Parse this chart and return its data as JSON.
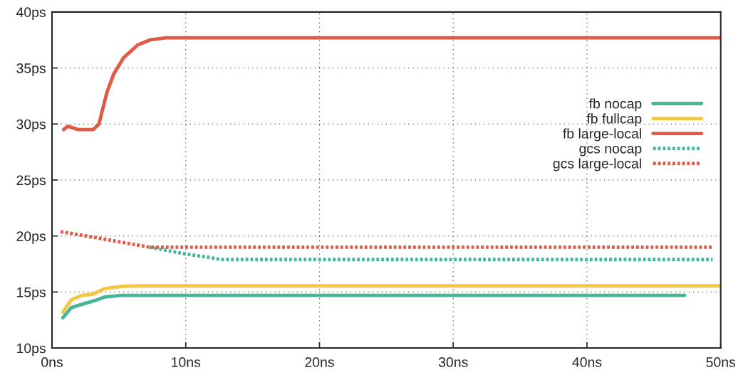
{
  "chart_data": {
    "type": "line",
    "xlim": [
      0,
      50
    ],
    "ylim": [
      10,
      40
    ],
    "xticks": [
      {
        "value": 0,
        "label": "0ns"
      },
      {
        "value": 10,
        "label": "10ns"
      },
      {
        "value": 20,
        "label": "20ns"
      },
      {
        "value": 30,
        "label": "30ns"
      },
      {
        "value": 40,
        "label": "40ns"
      },
      {
        "value": 50,
        "label": "50ns"
      }
    ],
    "yticks": [
      {
        "value": 10,
        "label": "10ps"
      },
      {
        "value": 15,
        "label": "15ps"
      },
      {
        "value": 20,
        "label": "20ps"
      },
      {
        "value": 25,
        "label": "25ps"
      },
      {
        "value": 30,
        "label": "30ps"
      },
      {
        "value": 35,
        "label": "35ps"
      },
      {
        "value": 40,
        "label": "40ps"
      }
    ],
    "grid": true,
    "legend": "right",
    "marker": "none",
    "series": [
      {
        "name": "fb nocap",
        "color": "#48b59a",
        "line_style": "solid",
        "x": [
          0.82,
          1.44,
          2.5,
          3.12,
          3.92,
          5.17,
          6.4,
          47.3
        ],
        "values": [
          12.7,
          13.6,
          14.0,
          14.2,
          14.55,
          14.7,
          14.7,
          14.7
        ]
      },
      {
        "name": "fb fullcap",
        "color": "#f2c744",
        "line_style": "solid",
        "x": [
          0.82,
          1.44,
          2.24,
          3.04,
          3.92,
          5.17,
          6.4,
          50
        ],
        "values": [
          13.2,
          14.3,
          14.7,
          14.8,
          15.3,
          15.5,
          15.55,
          15.55
        ]
      },
      {
        "name": "fb large-local",
        "color": "#e05a45",
        "line_style": "solid",
        "x": [
          0.87,
          1.17,
          1.97,
          3.09,
          3.51,
          4.1,
          4.63,
          5.34,
          6.4,
          7.3,
          8.5,
          50
        ],
        "values": [
          29.5,
          29.8,
          29.5,
          29.5,
          30.0,
          32.8,
          34.5,
          35.9,
          37.05,
          37.5,
          37.7,
          37.7
        ]
      },
      {
        "name": "gcs nocap",
        "color": "#48b59a",
        "line_style": "dotted",
        "x": [
          7.3,
          9.96,
          11.7,
          12.6,
          49.4
        ],
        "values": [
          19.0,
          18.4,
          18.1,
          17.9,
          17.9
        ]
      },
      {
        "name": "gcs large-local",
        "color": "#e05a45",
        "line_style": "dotted",
        "x": [
          0.64,
          4,
          7.3,
          49.4
        ],
        "values": [
          20.4,
          19.7,
          19.0,
          19.0
        ]
      }
    ]
  }
}
